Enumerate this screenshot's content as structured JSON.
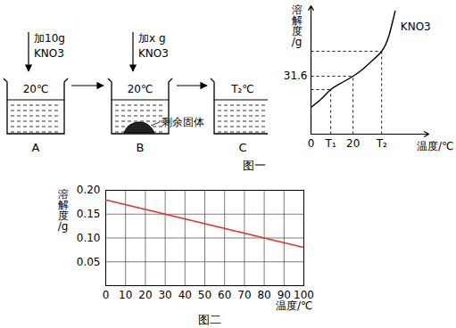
{
  "diagram": {
    "beakers": [
      {
        "label": "A",
        "temperature": "20℃",
        "added": "加10g",
        "substance": "KNO3"
      },
      {
        "label": "B",
        "temperature": "20℃",
        "added": "加x g",
        "substance": "KNO3",
        "residue": "剩余固体"
      },
      {
        "label": "C",
        "temperature": "T₂℃"
      }
    ]
  },
  "chart_data": [
    {
      "type": "line",
      "title": "图一",
      "x_label": "温度/℃",
      "y_label": "溶解度/g",
      "x": [
        0,
        5.1,
        9.4,
        14.9,
        20,
        24.7,
        28.9,
        33.6,
        37,
        40
      ],
      "series": [
        {
          "name": "KNO3",
          "color": "#000000",
          "values": [
            14.6,
            19.4,
            24.3,
            28.2,
            31.6,
            35.5,
            39.9,
            45.2,
            53.5,
            67.1
          ]
        }
      ],
      "xlim": [
        0,
        56
      ],
      "ylim": [
        0,
        70
      ],
      "xticks": [
        0,
        {
          "value": 9.4,
          "label": "T₁"
        },
        20,
        {
          "value": 33.6,
          "label": "T₂"
        }
      ],
      "yticks": [
        31.6
      ],
      "guides": [
        {
          "x": 9.4,
          "y": 24.3
        },
        {
          "x": 20,
          "y": 31.6
        },
        {
          "x": 33.6,
          "y": 45.2
        }
      ],
      "grid": false
    },
    {
      "type": "line",
      "title": "图二",
      "x_label": "温度/℃",
      "y_label": "溶解度/g",
      "x": [
        0,
        30,
        80,
        100
      ],
      "series": [
        {
          "color": "#e0302a",
          "values": [
            0.18,
            0.15,
            0.1,
            0.08
          ]
        }
      ],
      "xlim": [
        0,
        100
      ],
      "ylim": [
        0,
        0.2
      ],
      "xticks": [
        0,
        10,
        20,
        30,
        40,
        50,
        60,
        70,
        80,
        90,
        100
      ],
      "yticks": [
        0.05,
        {
          "value": 0.1,
          "label": "0.10"
        },
        0.15,
        {
          "value": 0.2,
          "label": "0.20"
        }
      ],
      "grid": true
    }
  ]
}
